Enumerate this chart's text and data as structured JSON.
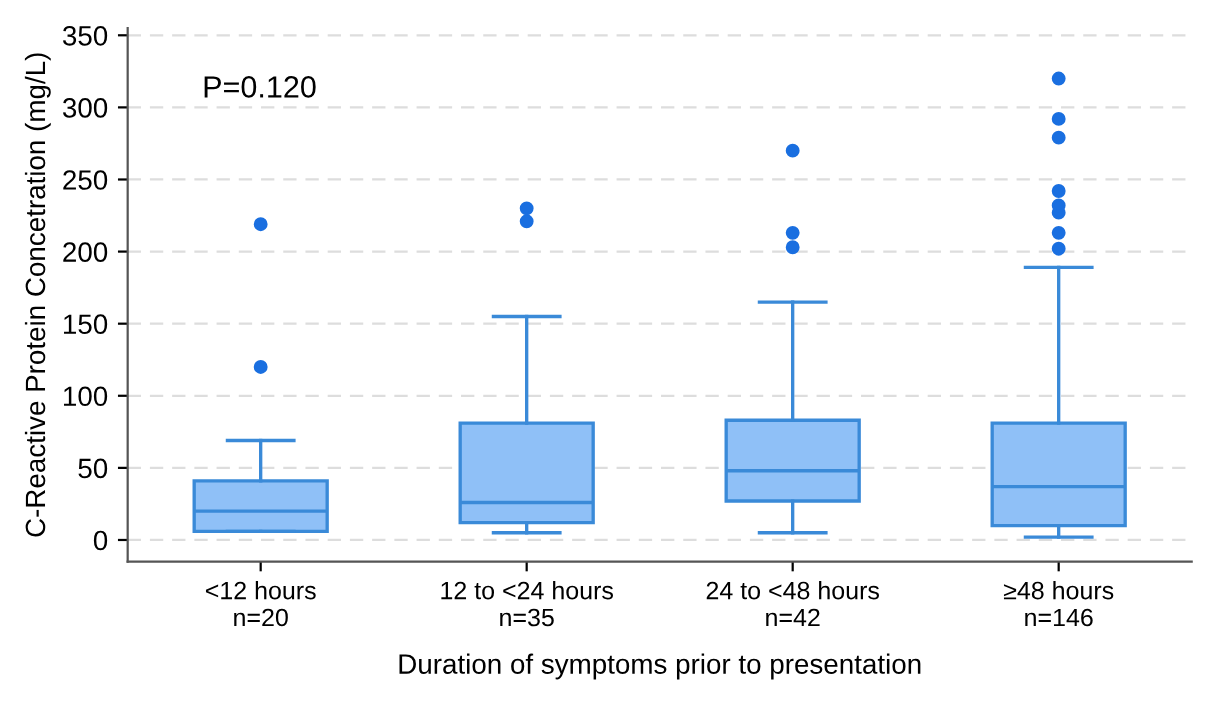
{
  "chart_data": {
    "type": "box",
    "xlabel": "Duration of symptoms prior to presentation",
    "ylabel": "C-Reactive Protein Concetration (mg/L)",
    "categories": [
      "<12 hours\nn=20",
      "12 to <24 hours\nn=35",
      "24 to <48 hours\nn=42",
      "≥48 hours\nn=146"
    ],
    "series": [
      {
        "color": "#8fc0f7",
        "boxes": [
          {
            "low": 6,
            "q1": 6,
            "median": 20,
            "q3": 41,
            "high": 69,
            "outliers": [
              120,
              219
            ]
          },
          {
            "low": 5,
            "q1": 12,
            "median": 26,
            "q3": 81,
            "high": 155,
            "outliers": [
              221,
              230
            ]
          },
          {
            "low": 5,
            "q1": 27,
            "median": 48,
            "q3": 83,
            "high": 165,
            "outliers": [
              203,
              213,
              270
            ]
          },
          {
            "low": 2,
            "q1": 10,
            "median": 37,
            "q3": 81,
            "high": 189,
            "outliers": [
              202,
              213,
              227,
              232,
              242,
              279,
              292,
              320
            ]
          }
        ]
      }
    ],
    "ylim": [
      -15,
      355
    ],
    "yticks": [
      0,
      50,
      100,
      150,
      200,
      250,
      300,
      350
    ],
    "grid": "y",
    "annotations": [
      "P=0.120"
    ]
  }
}
